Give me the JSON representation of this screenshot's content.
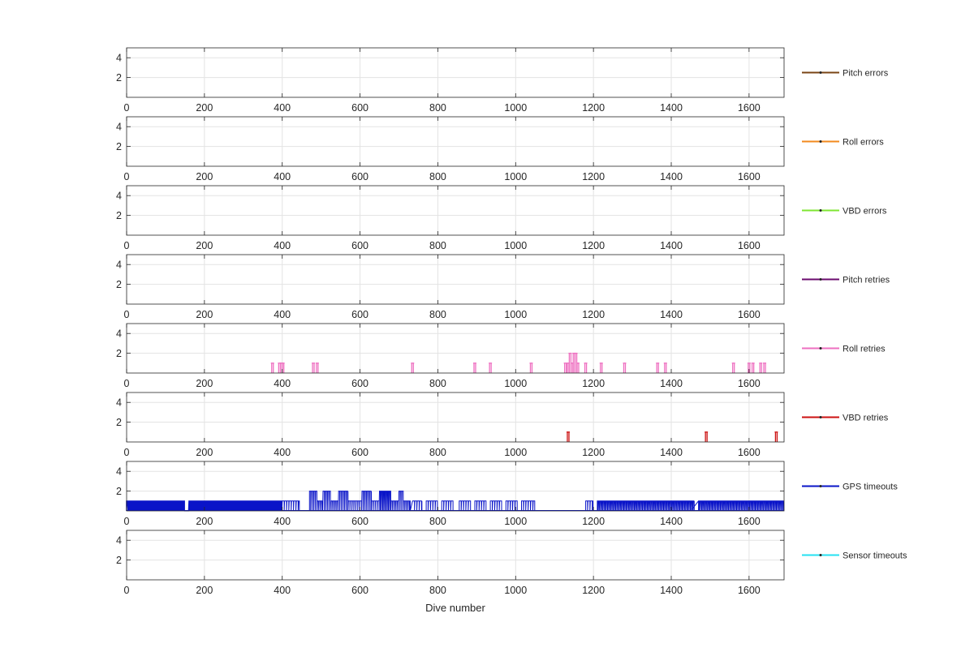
{
  "chart_data": {
    "type": "line",
    "xlabel": "Dive number",
    "xlim": [
      0,
      1690
    ],
    "ylim": [
      0,
      5
    ],
    "xticks": [
      0,
      200,
      400,
      600,
      800,
      1000,
      1200,
      1400,
      1600
    ],
    "yticks": [
      2,
      4
    ],
    "grid": true,
    "legend_position": "right",
    "series": [
      {
        "name": "Pitch errors",
        "color": "#7a4514",
        "events": []
      },
      {
        "name": "Roll errors",
        "color": "#f28a1e",
        "events": []
      },
      {
        "name": "VBD errors",
        "color": "#7fe532",
        "events": []
      },
      {
        "name": "Pitch retries",
        "color": "#6a0a6e",
        "events": []
      },
      {
        "name": "Roll retries",
        "color": "#ee6fc0",
        "events": [
          [
            375,
            1
          ],
          [
            393,
            1
          ],
          [
            398,
            1
          ],
          [
            402,
            1
          ],
          [
            480,
            1
          ],
          [
            490,
            1
          ],
          [
            735,
            1
          ],
          [
            895,
            1
          ],
          [
            935,
            1
          ],
          [
            1040,
            1
          ],
          [
            1128,
            1
          ],
          [
            1135,
            1
          ],
          [
            1140,
            2
          ],
          [
            1145,
            1
          ],
          [
            1150,
            2
          ],
          [
            1155,
            2
          ],
          [
            1160,
            1
          ],
          [
            1180,
            1
          ],
          [
            1220,
            1
          ],
          [
            1280,
            1
          ],
          [
            1365,
            1
          ],
          [
            1385,
            1
          ],
          [
            1560,
            1
          ],
          [
            1600,
            1
          ],
          [
            1610,
            1
          ],
          [
            1630,
            1
          ],
          [
            1640,
            1
          ]
        ]
      },
      {
        "name": "VBD retries",
        "color": "#cc1111",
        "events": [
          [
            1135,
            1
          ],
          [
            1490,
            1
          ],
          [
            1670,
            1
          ]
        ]
      },
      {
        "name": "GPS timeouts",
        "color": "#0a14c8",
        "profile": [
          [
            0,
            0.5,
            1,
            2
          ],
          [
            2,
            150,
            1,
            2
          ],
          [
            150,
            160,
            0,
            4
          ],
          [
            160,
            400,
            1,
            2
          ],
          [
            400,
            445,
            1,
            6
          ],
          [
            470,
            490,
            2,
            4
          ],
          [
            490,
            505,
            1,
            4
          ],
          [
            505,
            525,
            2,
            4
          ],
          [
            525,
            545,
            1,
            4
          ],
          [
            545,
            570,
            2,
            4
          ],
          [
            570,
            605,
            1,
            5
          ],
          [
            605,
            630,
            2,
            4
          ],
          [
            630,
            650,
            1,
            5
          ],
          [
            650,
            680,
            2,
            3
          ],
          [
            680,
            700,
            1,
            4
          ],
          [
            700,
            712,
            2,
            4
          ],
          [
            712,
            730,
            1,
            4
          ],
          [
            735,
            760,
            1,
            6
          ],
          [
            770,
            800,
            1,
            6
          ],
          [
            810,
            840,
            1,
            6
          ],
          [
            855,
            885,
            1,
            6
          ],
          [
            895,
            925,
            1,
            6
          ],
          [
            935,
            965,
            1,
            6
          ],
          [
            975,
            1005,
            1,
            6
          ],
          [
            1015,
            1050,
            1,
            6
          ],
          [
            1180,
            1200,
            1,
            6
          ],
          [
            1210,
            1460,
            1,
            3
          ],
          [
            1470,
            1690,
            1,
            3
          ]
        ]
      },
      {
        "name": "Sensor timeouts",
        "color": "#25e1f2",
        "events": []
      }
    ]
  }
}
